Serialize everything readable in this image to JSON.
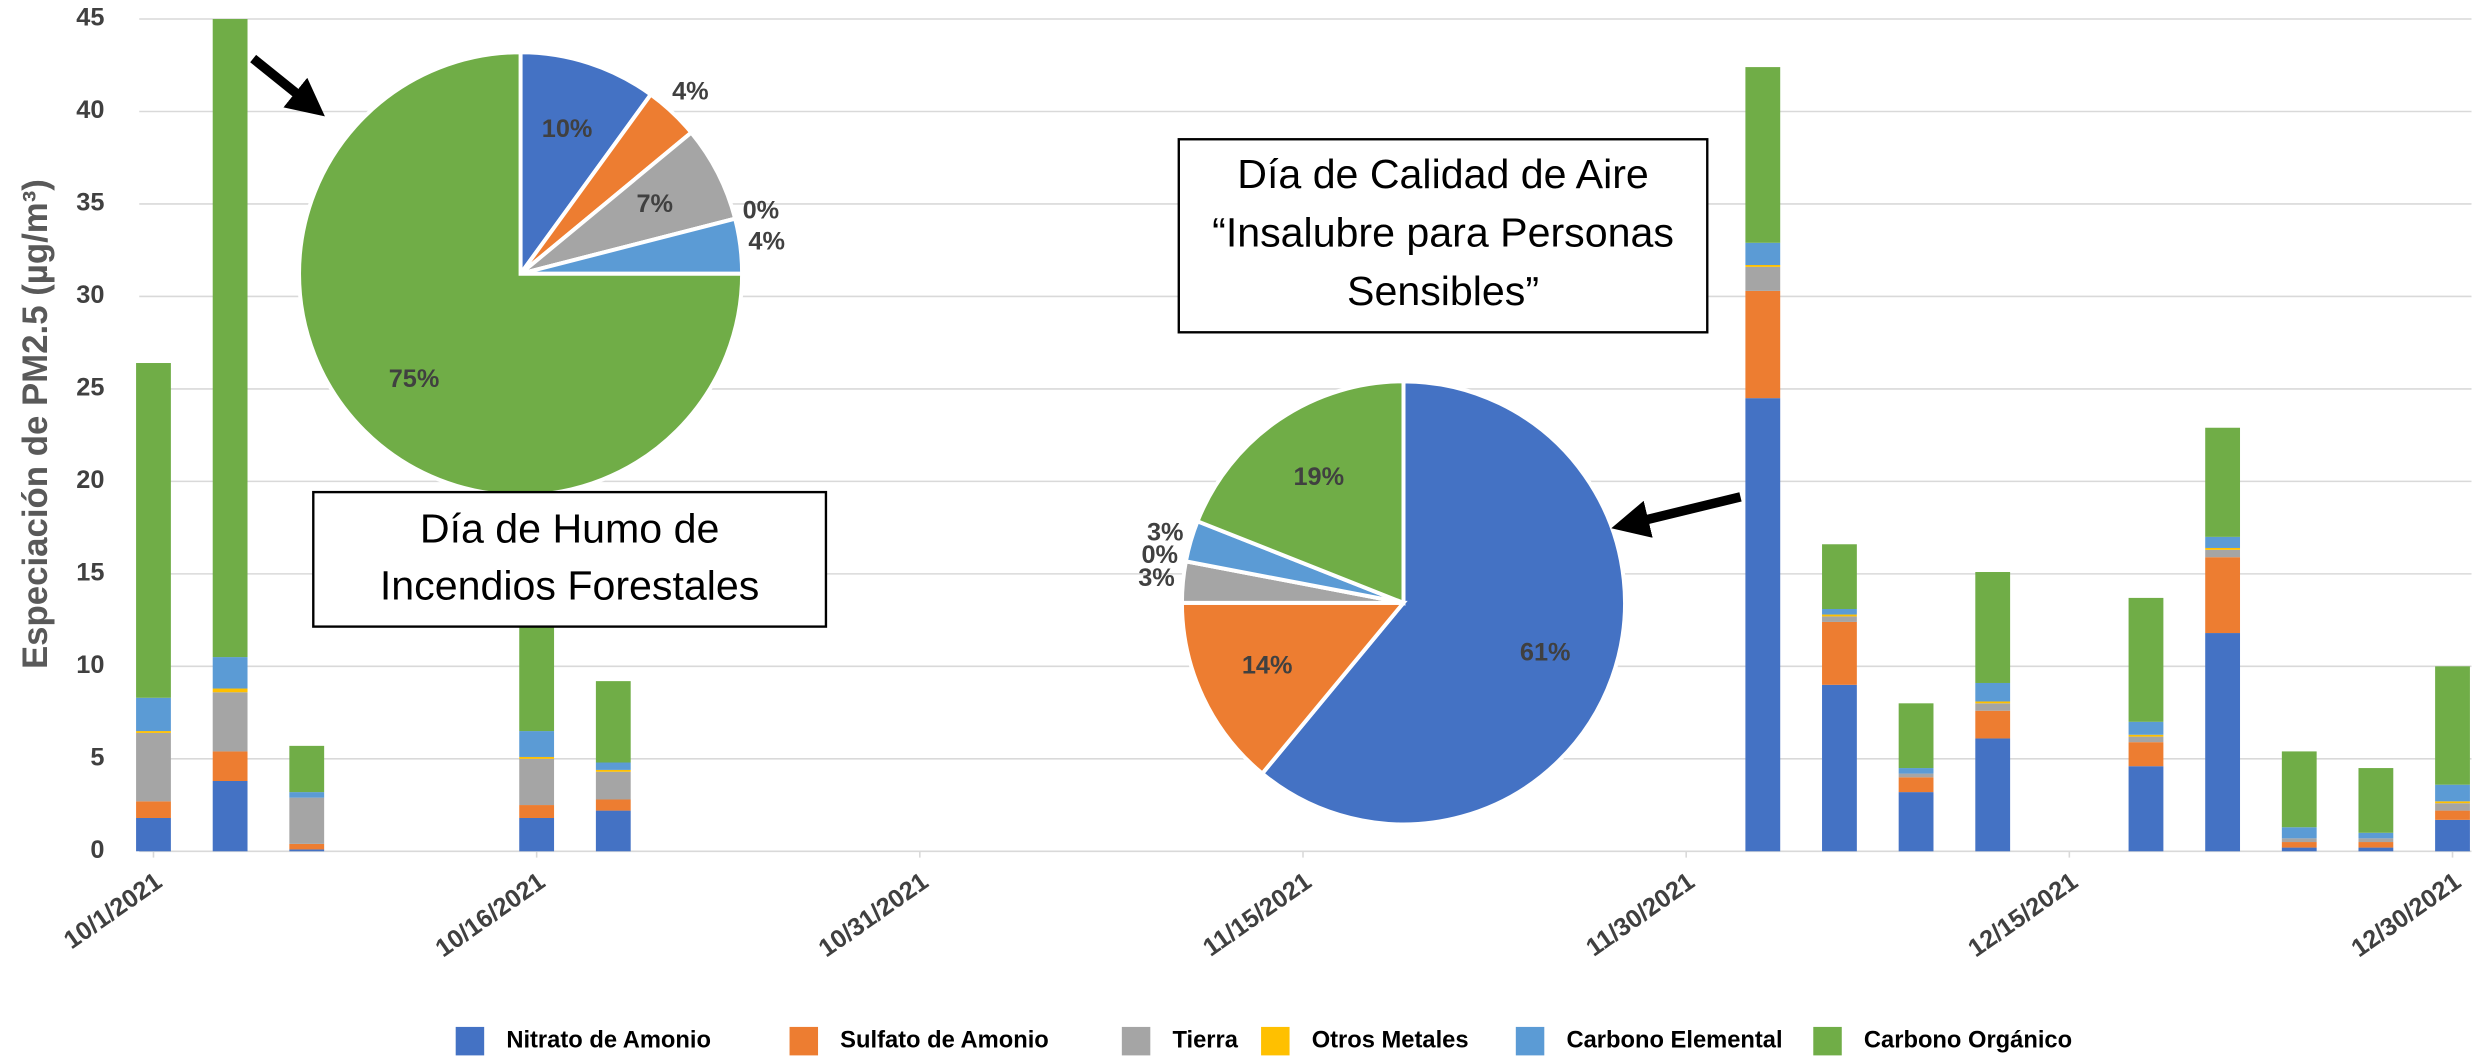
{
  "chart_data": [
    {
      "type": "bar",
      "stacked": true,
      "y_label": "Especiación de PM2.5 (µg/m³)",
      "x": [
        "10/1/2021",
        "10/4/2021",
        "10/7/2021",
        "10/16/2021",
        "10/19/2021",
        "12/3/2021",
        "12/6/2021",
        "12/9/2021",
        "12/12/2021",
        "12/18/2021",
        "12/21/2021",
        "12/24/2021",
        "12/27/2021",
        "12/30/2021"
      ],
      "xlim": [
        "10/1/2021",
        "12/30/2021"
      ],
      "xticks": [
        "10/1/2021",
        "10/16/2021",
        "10/31/2021",
        "11/15/2021",
        "11/30/2021",
        "12/15/2021",
        "12/30/2021"
      ],
      "ylim": [
        0,
        45
      ],
      "yticks": [
        0,
        5,
        10,
        15,
        20,
        25,
        30,
        35,
        40,
        45
      ],
      "grid": true,
      "legend": "bottom",
      "series": [
        {
          "name": "Nitrato de Amonio",
          "color": "#4472c4",
          "values": [
            1.8,
            3.8,
            0.1,
            1.8,
            2.2,
            24.5,
            9.0,
            3.2,
            6.1,
            4.6,
            11.8,
            0.2,
            0.2,
            1.7
          ]
        },
        {
          "name": "Sulfato de Amonio",
          "color": "#ed7d31",
          "values": [
            0.9,
            1.6,
            0.3,
            0.7,
            0.6,
            5.8,
            3.4,
            0.8,
            1.5,
            1.3,
            4.1,
            0.3,
            0.3,
            0.5
          ]
        },
        {
          "name": "Tierra",
          "color": "#a5a5a5",
          "values": [
            3.7,
            3.2,
            2.5,
            2.5,
            1.5,
            1.3,
            0.3,
            0.2,
            0.4,
            0.3,
            0.4,
            0.2,
            0.2,
            0.4
          ]
        },
        {
          "name": "Otros Metales",
          "color": "#ffc000",
          "values": [
            0.1,
            0.2,
            0.0,
            0.1,
            0.1,
            0.1,
            0.1,
            0.0,
            0.1,
            0.1,
            0.1,
            0.0,
            0.0,
            0.1
          ]
        },
        {
          "name": "Carbono Elemental",
          "color": "#5b9bd5",
          "values": [
            1.8,
            1.7,
            0.3,
            1.4,
            0.4,
            1.2,
            0.3,
            0.3,
            1.0,
            0.7,
            0.6,
            0.6,
            0.3,
            0.9
          ]
        },
        {
          "name": "Carbono Orgánico",
          "color": "#70ad47",
          "values": [
            18.1,
            34.5,
            2.5,
            10.5,
            4.4,
            9.5,
            3.5,
            3.5,
            6.0,
            6.7,
            5.9,
            4.1,
            3.5,
            6.4
          ]
        }
      ]
    },
    {
      "type": "pie",
      "annotation": [
        "Día de Humo de",
        "Incendios Forestales"
      ],
      "values": [
        10,
        4,
        7,
        0,
        4,
        75
      ],
      "value_labels": [
        "10%",
        "4%",
        "7%",
        "0%",
        "4%",
        "75%"
      ],
      "colors": [
        "#4472c4",
        "#ed7d31",
        "#a5a5a5",
        "#ffc000",
        "#5b9bd5",
        "#70ad47"
      ]
    },
    {
      "type": "pie",
      "annotation": [
        "Día de Calidad de Aire",
        "“Insalubre para Personas",
        "Sensibles”"
      ],
      "values": [
        61,
        14,
        3,
        0,
        3,
        19
      ],
      "value_labels": [
        "61%",
        "14%",
        "3%",
        "0%",
        "3%",
        "19%"
      ],
      "colors": [
        "#4472c4",
        "#ed7d31",
        "#a5a5a5",
        "#ffc000",
        "#5b9bd5",
        "#70ad47"
      ]
    }
  ]
}
